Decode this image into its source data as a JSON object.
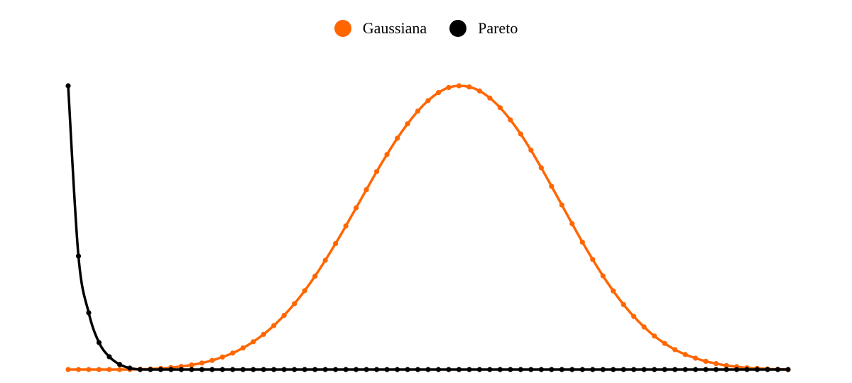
{
  "chart_data": {
    "type": "line",
    "title": "",
    "xlabel": "",
    "ylabel": "",
    "grid": false,
    "axes_visible": false,
    "legend_position": "top-center",
    "x": [
      0,
      1,
      2,
      3,
      4,
      5,
      6,
      7,
      8,
      9,
      10,
      11,
      12,
      13,
      14,
      15,
      16,
      17,
      18,
      19,
      20,
      21,
      22,
      23,
      24,
      25,
      26,
      27,
      28,
      29,
      30,
      31,
      32,
      33,
      34,
      35,
      36,
      37,
      38,
      39,
      40,
      41,
      42,
      43,
      44,
      45,
      46,
      47,
      48,
      49,
      50,
      51,
      52,
      53,
      54,
      55,
      56,
      57,
      58,
      59,
      60,
      61,
      62,
      63,
      64,
      65,
      66,
      67,
      68,
      69,
      70
    ],
    "ylim": [
      0,
      1
    ],
    "series": [
      {
        "name": "Gaussiana",
        "color": "#ff6600",
        "values": [
          0.0,
          0.0,
          0.0,
          0.0,
          0.0,
          0.0,
          0.0,
          0.001,
          0.002,
          0.004,
          0.007,
          0.011,
          0.016,
          0.023,
          0.032,
          0.044,
          0.058,
          0.076,
          0.098,
          0.124,
          0.155,
          0.191,
          0.232,
          0.278,
          0.329,
          0.385,
          0.444,
          0.506,
          0.57,
          0.634,
          0.698,
          0.758,
          0.815,
          0.866,
          0.911,
          0.948,
          0.976,
          0.994,
          1.0,
          0.996,
          0.982,
          0.957,
          0.923,
          0.88,
          0.83,
          0.773,
          0.711,
          0.646,
          0.58,
          0.514,
          0.449,
          0.388,
          0.33,
          0.277,
          0.229,
          0.187,
          0.15,
          0.118,
          0.092,
          0.07,
          0.053,
          0.04,
          0.029,
          0.021,
          0.014,
          0.01,
          0.006,
          0.004,
          0.002,
          0.001,
          0.0
        ]
      },
      {
        "name": "Pareto",
        "color": "#000000",
        "values": [
          1.0,
          0.4,
          0.2,
          0.095,
          0.045,
          0.018,
          0.005,
          0.0,
          0.0,
          0.0,
          0.0,
          0.0,
          0.0,
          0.0,
          0.0,
          0.0,
          0.0,
          0.0,
          0.0,
          0.0,
          0.0,
          0.0,
          0.0,
          0.0,
          0.0,
          0.0,
          0.0,
          0.0,
          0.0,
          0.0,
          0.0,
          0.0,
          0.0,
          0.0,
          0.0,
          0.0,
          0.0,
          0.0,
          0.0,
          0.0,
          0.0,
          0.0,
          0.0,
          0.0,
          0.0,
          0.0,
          0.0,
          0.0,
          0.0,
          0.0,
          0.0,
          0.0,
          0.0,
          0.0,
          0.0,
          0.0,
          0.0,
          0.0,
          0.0,
          0.0,
          0.0,
          0.0,
          0.0,
          0.0,
          0.0,
          0.0,
          0.0,
          0.0,
          0.0,
          0.0,
          0.0
        ]
      }
    ]
  }
}
